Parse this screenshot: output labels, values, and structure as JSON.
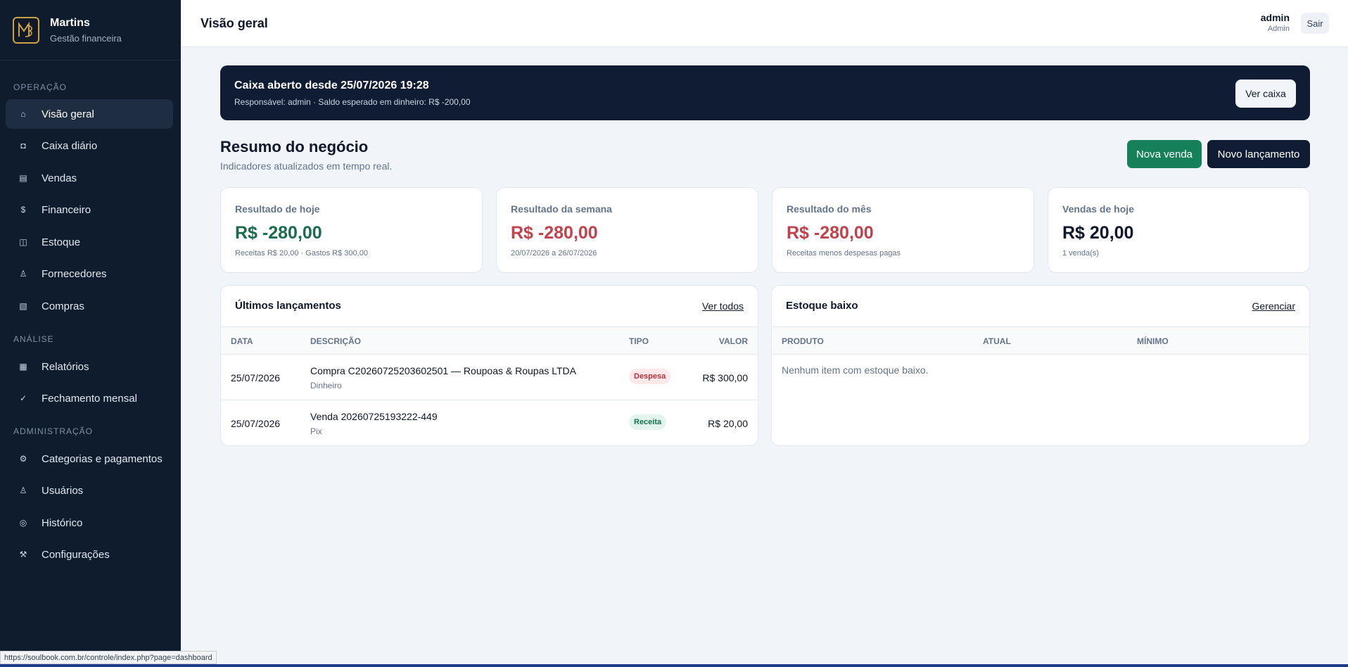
{
  "brand": {
    "name": "Martins",
    "subtitle": "Gestão financeira"
  },
  "sidebar": {
    "sections": [
      {
        "label": "OPERAÇÃO"
      },
      {
        "label": "ANÁLISE"
      },
      {
        "label": "ADMINISTRAÇÃO"
      }
    ],
    "items": [
      {
        "label": "Visão geral",
        "icon": "home-icon",
        "glyph": "⌂",
        "active": true
      },
      {
        "label": "Caixa diário",
        "icon": "cash-register-icon",
        "glyph": "◘"
      },
      {
        "label": "Vendas",
        "icon": "receipt-icon",
        "glyph": "▤"
      },
      {
        "label": "Financeiro",
        "icon": "dollar-icon",
        "glyph": "$"
      },
      {
        "label": "Estoque",
        "icon": "box-icon",
        "glyph": "◫"
      },
      {
        "label": "Fornecedores",
        "icon": "person-icon",
        "glyph": "♙"
      },
      {
        "label": "Compras",
        "icon": "cart-icon",
        "glyph": "▧"
      },
      {
        "label": "Relatórios",
        "icon": "report-icon",
        "glyph": "▦"
      },
      {
        "label": "Fechamento mensal",
        "icon": "check-icon",
        "glyph": "✓"
      },
      {
        "label": "Categorias e pagamentos",
        "icon": "gear-icon",
        "glyph": "⚙"
      },
      {
        "label": "Usuários",
        "icon": "user-icon",
        "glyph": "♙"
      },
      {
        "label": "Histórico",
        "icon": "history-icon",
        "glyph": "◎"
      },
      {
        "label": "Configurações",
        "icon": "tools-icon",
        "glyph": "⚒"
      }
    ]
  },
  "header": {
    "title": "Visão geral",
    "user_name": "admin",
    "user_role": "Admin",
    "logout_label": "Sair"
  },
  "banner": {
    "title": "Caixa aberto desde 25/07/2026 19:28",
    "subtitle": "Responsável: admin · Saldo esperado em dinheiro: R$ -200,00",
    "button": "Ver caixa"
  },
  "summary": {
    "title": "Resumo do negócio",
    "subtitle": "Indicadores atualizados em tempo real.",
    "new_sale": "Nova venda",
    "new_entry": "Novo lançamento"
  },
  "stats": [
    {
      "label": "Resultado de hoje",
      "value": "R$ -280,00",
      "note": "Receitas R$ 20,00 · Gastos R$ 300,00",
      "color": "#1b6b4f"
    },
    {
      "label": "Resultado da semana",
      "value": "R$ -280,00",
      "note": "20/07/2026 a 26/07/2026",
      "color": "#c2414b"
    },
    {
      "label": "Resultado do mês",
      "value": "R$ -280,00",
      "note": "Receitas menos despesas pagas",
      "color": "#c2414b"
    },
    {
      "label": "Vendas de hoje",
      "value": "R$ 20,00",
      "note": "1 venda(s)",
      "color": "#0f172a"
    }
  ],
  "entries": {
    "title": "Últimos lançamentos",
    "link": "Ver todos",
    "columns": [
      "DATA",
      "DESCRIÇÃO",
      "TIPO",
      "VALOR"
    ],
    "rows": [
      {
        "date": "25/07/2026",
        "description": "Compra C20260725203602501 — Roupoas & Roupas LTDA",
        "method": "Dinheiro",
        "type": "Despesa",
        "value": "R$ 300,00"
      },
      {
        "date": "25/07/2026",
        "description": "Venda 20260725193222-449",
        "method": "Pix",
        "type": "Receita",
        "value": "R$ 20,00"
      }
    ]
  },
  "stock": {
    "title": "Estoque baixo",
    "link": "Gerenciar",
    "columns": [
      "PRODUTO",
      "ATUAL",
      "MÍNIMO"
    ],
    "empty": "Nenhum item com estoque baixo."
  },
  "statusbar": {
    "url": "https://soulbook.com.br/controle/index.php?page=dashboard"
  }
}
